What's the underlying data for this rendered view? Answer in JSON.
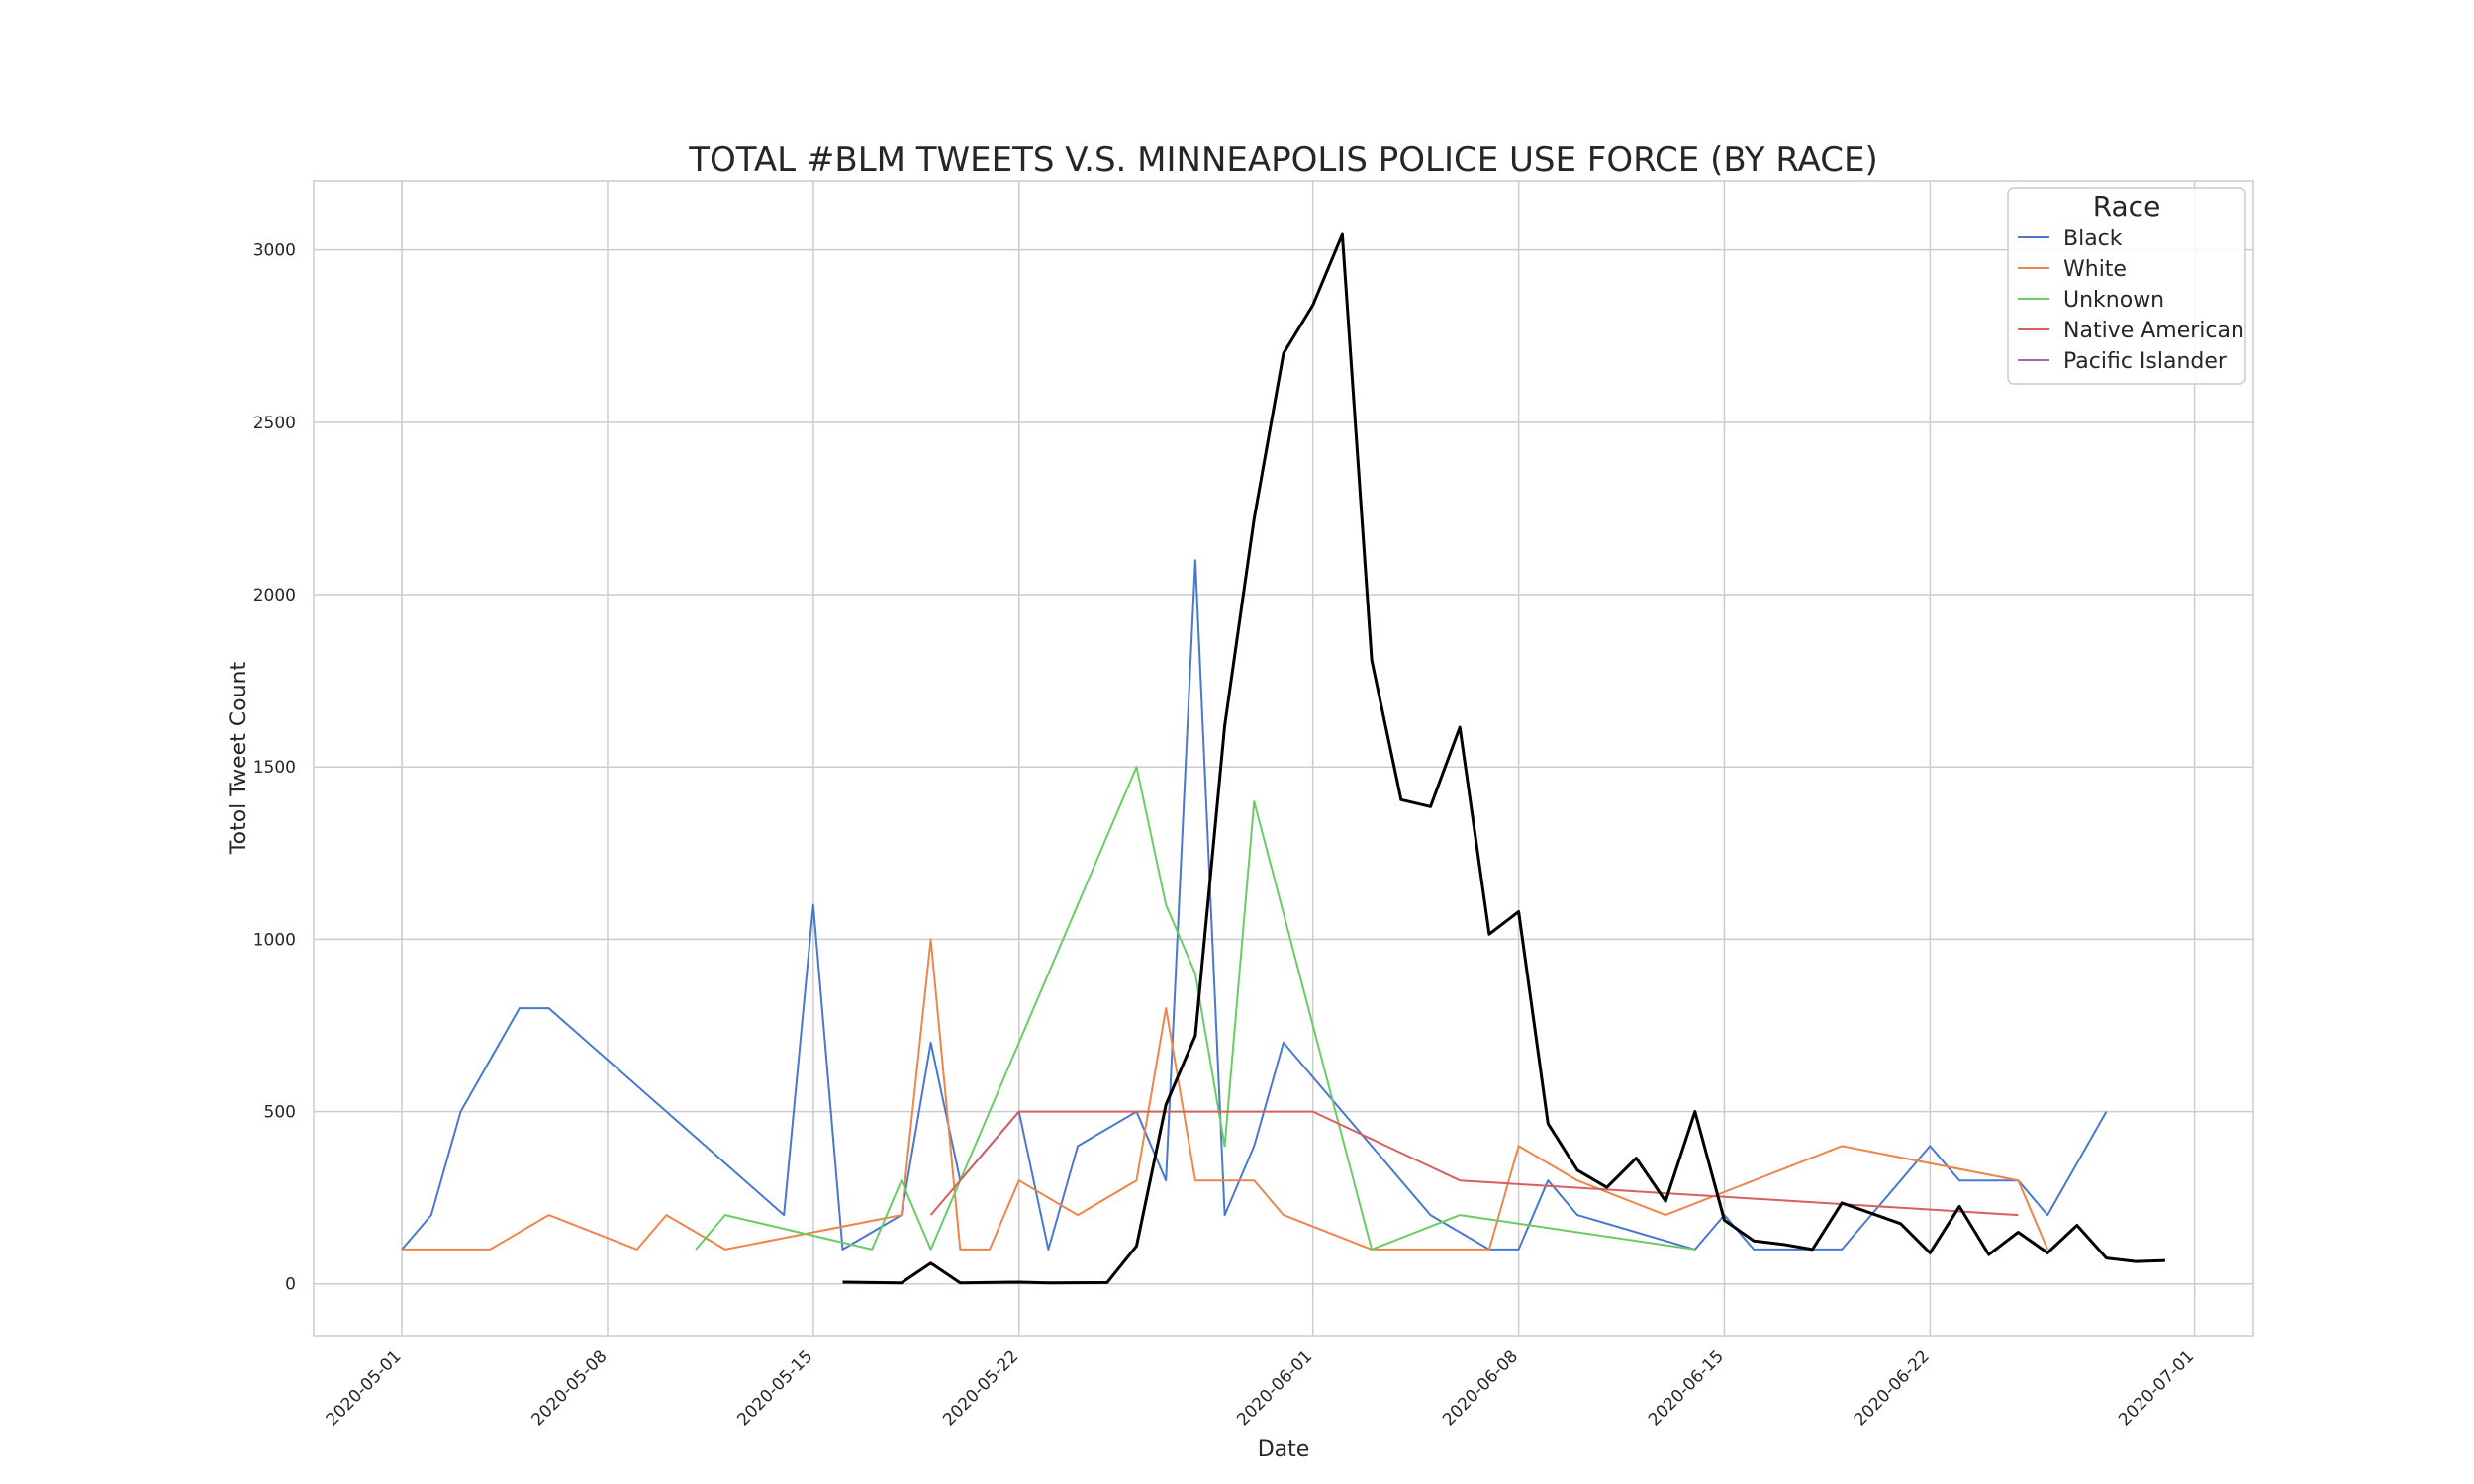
{
  "chart_data": {
    "type": "line",
    "title": "TOTAL #BLM TWEETS V.S. MINNEAPOLIS POLICE USE FORCE (BY RACE)",
    "xlabel": "Date",
    "ylabel": "Totol Tweet Count",
    "xlim": [
      "2020-04-28",
      "2020-07-03"
    ],
    "ylim": [
      -150,
      3200
    ],
    "x_ticks": [
      "2020-05-01",
      "2020-05-08",
      "2020-05-15",
      "2020-05-22",
      "2020-06-01",
      "2020-06-08",
      "2020-06-15",
      "2020-06-22",
      "2020-07-01"
    ],
    "y_ticks": [
      0,
      500,
      1000,
      1500,
      2000,
      2500,
      3000
    ],
    "grid": true,
    "legend": {
      "title": "Race",
      "placement": "top-right",
      "entries": [
        "Black",
        "White",
        "Unknown",
        "Native American",
        "Pacific Islander"
      ]
    },
    "series": [
      {
        "name": "Black",
        "color": "#4878d0",
        "points": [
          [
            "2020-05-01",
            100
          ],
          [
            "2020-05-02",
            200
          ],
          [
            "2020-05-03",
            500
          ],
          [
            "2020-05-05",
            800
          ],
          [
            "2020-05-06",
            800
          ],
          [
            "2020-05-14",
            200
          ],
          [
            "2020-05-15",
            1100
          ],
          [
            "2020-05-16",
            100
          ],
          [
            "2020-05-18",
            200
          ],
          [
            "2020-05-19",
            700
          ],
          [
            "2020-05-20",
            300
          ],
          [
            "2020-05-22",
            500
          ],
          [
            "2020-05-23",
            100
          ],
          [
            "2020-05-24",
            400
          ],
          [
            "2020-05-26",
            500
          ],
          [
            "2020-05-27",
            300
          ],
          [
            "2020-05-28",
            2100
          ],
          [
            "2020-05-29",
            200
          ],
          [
            "2020-05-30",
            400
          ],
          [
            "2020-05-31",
            700
          ],
          [
            "2020-06-05",
            200
          ],
          [
            "2020-06-07",
            100
          ],
          [
            "2020-06-08",
            100
          ],
          [
            "2020-06-09",
            300
          ],
          [
            "2020-06-10",
            200
          ],
          [
            "2020-06-14",
            100
          ],
          [
            "2020-06-15",
            200
          ],
          [
            "2020-06-16",
            100
          ],
          [
            "2020-06-18",
            100
          ],
          [
            "2020-06-19",
            100
          ],
          [
            "2020-06-22",
            400
          ],
          [
            "2020-06-23",
            300
          ],
          [
            "2020-06-25",
            300
          ],
          [
            "2020-06-26",
            200
          ],
          [
            "2020-06-28",
            500
          ]
        ]
      },
      {
        "name": "White",
        "color": "#ee854a",
        "points": [
          [
            "2020-05-01",
            100
          ],
          [
            "2020-05-04",
            100
          ],
          [
            "2020-05-06",
            200
          ],
          [
            "2020-05-09",
            100
          ],
          [
            "2020-05-10",
            200
          ],
          [
            "2020-05-12",
            100
          ],
          [
            "2020-05-18",
            200
          ],
          [
            "2020-05-19",
            1000
          ],
          [
            "2020-05-20",
            100
          ],
          [
            "2020-05-21",
            100
          ],
          [
            "2020-05-22",
            300
          ],
          [
            "2020-05-24",
            200
          ],
          [
            "2020-05-26",
            300
          ],
          [
            "2020-05-27",
            800
          ],
          [
            "2020-05-28",
            300
          ],
          [
            "2020-05-30",
            300
          ],
          [
            "2020-05-31",
            200
          ],
          [
            "2020-06-03",
            100
          ],
          [
            "2020-06-07",
            100
          ],
          [
            "2020-06-08",
            400
          ],
          [
            "2020-06-10",
            300
          ],
          [
            "2020-06-13",
            200
          ],
          [
            "2020-06-19",
            400
          ],
          [
            "2020-06-25",
            300
          ],
          [
            "2020-06-26",
            100
          ]
        ]
      },
      {
        "name": "Unknown",
        "color": "#6acc64",
        "points": [
          [
            "2020-05-11",
            100
          ],
          [
            "2020-05-12",
            200
          ],
          [
            "2020-05-17",
            100
          ],
          [
            "2020-05-18",
            300
          ],
          [
            "2020-05-19",
            100
          ],
          [
            "2020-05-26",
            1500
          ],
          [
            "2020-05-27",
            1100
          ],
          [
            "2020-05-28",
            900
          ],
          [
            "2020-05-29",
            400
          ],
          [
            "2020-05-30",
            1400
          ],
          [
            "2020-06-03",
            100
          ],
          [
            "2020-06-06",
            200
          ],
          [
            "2020-06-14",
            100
          ]
        ]
      },
      {
        "name": "Native American",
        "color": "#d65f5f",
        "points": [
          [
            "2020-05-19",
            200
          ],
          [
            "2020-05-22",
            500
          ],
          [
            "2020-06-01",
            500
          ],
          [
            "2020-06-06",
            300
          ],
          [
            "2020-06-25",
            200
          ]
        ]
      },
      {
        "name": "Pacific Islander",
        "color": "#956cb4",
        "points": []
      },
      {
        "name": "",
        "color": "#000000",
        "line_width": 3,
        "points": [
          [
            "2020-05-16",
            5
          ],
          [
            "2020-05-18",
            3
          ],
          [
            "2020-05-19",
            60
          ],
          [
            "2020-05-20",
            3
          ],
          [
            "2020-05-22",
            5
          ],
          [
            "2020-05-23",
            3
          ],
          [
            "2020-05-25",
            4
          ],
          [
            "2020-05-26",
            110
          ],
          [
            "2020-05-27",
            520
          ],
          [
            "2020-05-28",
            720
          ],
          [
            "2020-05-29",
            1620
          ],
          [
            "2020-05-30",
            2220
          ],
          [
            "2020-05-31",
            2700
          ],
          [
            "2020-06-01",
            2840
          ],
          [
            "2020-06-02",
            3045
          ],
          [
            "2020-06-03",
            1810
          ],
          [
            "2020-06-04",
            1405
          ],
          [
            "2020-06-05",
            1385
          ],
          [
            "2020-06-06",
            1615
          ],
          [
            "2020-06-07",
            1015
          ],
          [
            "2020-06-08",
            1080
          ],
          [
            "2020-06-09",
            465
          ],
          [
            "2020-06-10",
            330
          ],
          [
            "2020-06-11",
            280
          ],
          [
            "2020-06-12",
            365
          ],
          [
            "2020-06-13",
            240
          ],
          [
            "2020-06-14",
            500
          ],
          [
            "2020-06-15",
            185
          ],
          [
            "2020-06-16",
            125
          ],
          [
            "2020-06-17",
            115
          ],
          [
            "2020-06-18",
            100
          ],
          [
            "2020-06-19",
            235
          ],
          [
            "2020-06-20",
            205
          ],
          [
            "2020-06-21",
            175
          ],
          [
            "2020-06-22",
            90
          ],
          [
            "2020-06-23",
            225
          ],
          [
            "2020-06-24",
            85
          ],
          [
            "2020-06-25",
            150
          ],
          [
            "2020-06-26",
            90
          ],
          [
            "2020-06-27",
            170
          ],
          [
            "2020-06-28",
            75
          ],
          [
            "2020-06-29",
            65
          ],
          [
            "2020-06-30",
            68
          ]
        ]
      }
    ]
  }
}
